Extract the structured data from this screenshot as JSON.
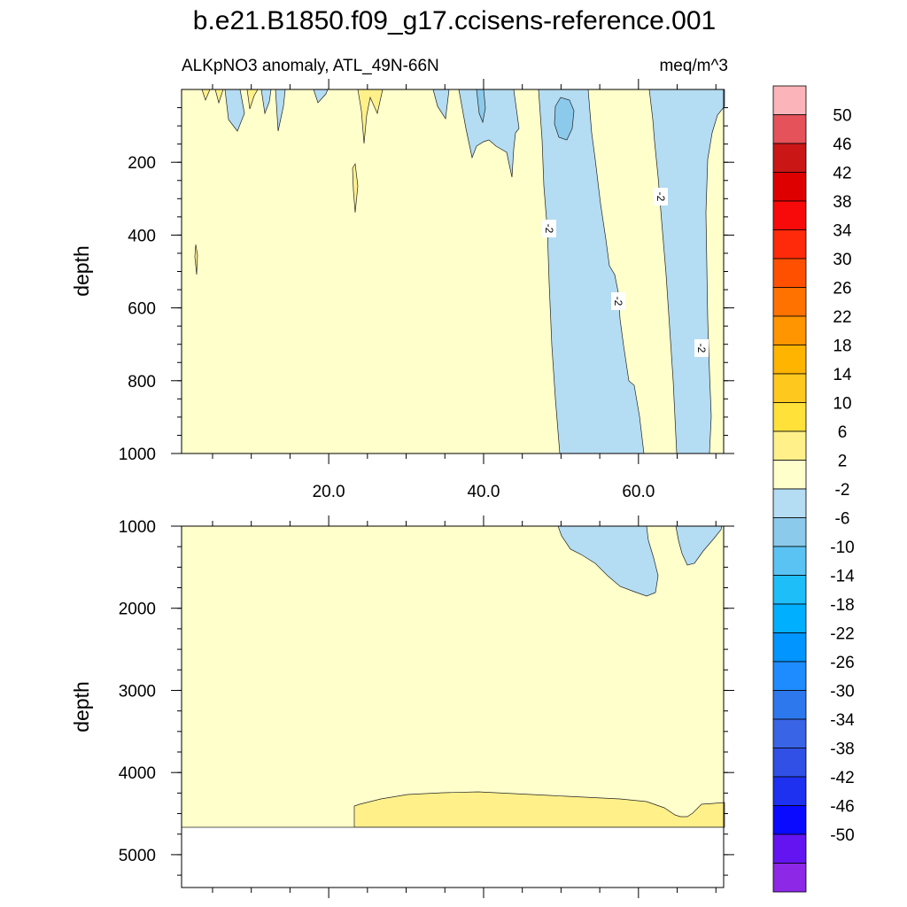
{
  "chart_data": {
    "type": "contour",
    "title": "b.e21.B1850.f09_g17.ccisens-reference.001",
    "subtitle_left": "ALKpNO3 anomaly, ATL_49N-66N",
    "subtitle_right": "meq/m^3",
    "xlim": [
      1,
      71
    ],
    "x_ticks": [
      20,
      40,
      60
    ],
    "x_tick_labels": [
      "20.0",
      "40.0",
      "60.0"
    ],
    "panels": [
      {
        "name": "upper",
        "ylabel": "depth",
        "ylim": [
          0,
          1000
        ],
        "y_ticks": [
          200,
          400,
          600,
          800,
          1000
        ],
        "y_tick_labels": [
          "200",
          "400",
          "600",
          "800",
          "1000"
        ],
        "contour_labels": [
          "-2",
          "-2",
          "-2",
          "-2"
        ]
      },
      {
        "name": "lower",
        "ylabel": "depth",
        "ylim": [
          1000,
          5400
        ],
        "y_ticks": [
          1000,
          2000,
          3000,
          4000,
          5000
        ],
        "y_tick_labels": [
          "1000",
          "2000",
          "3000",
          "4000",
          "5000"
        ],
        "bottom_depth": 4620
      }
    ],
    "colorbar": {
      "levels": [
        "50",
        "46",
        "42",
        "38",
        "34",
        "30",
        "26",
        "22",
        "18",
        "14",
        "10",
        "6",
        "2",
        "-2",
        "-6",
        "-10",
        "-14",
        "-18",
        "-22",
        "-26",
        "-30",
        "-34",
        "-38",
        "-42",
        "-46",
        "-50"
      ],
      "colors": [
        "#fbb4b9",
        "#e5525a",
        "#cb1616",
        "#de0000",
        "#f80a0a",
        "#ff2a0a",
        "#ff5000",
        "#ff7200",
        "#ff9500",
        "#ffb400",
        "#ffc81e",
        "#ffe13a",
        "#fff08a",
        "#ffffcc",
        "#b4dcf2",
        "#8ccaec",
        "#5ac3f3",
        "#1ebef9",
        "#00b0ff",
        "#0095ff",
        "#1e8cff",
        "#2e78ee",
        "#3a64e6",
        "#3050e6",
        "#1e30f0",
        "#0a0aff",
        "#6414f0",
        "#8c28e6"
      ]
    }
  }
}
